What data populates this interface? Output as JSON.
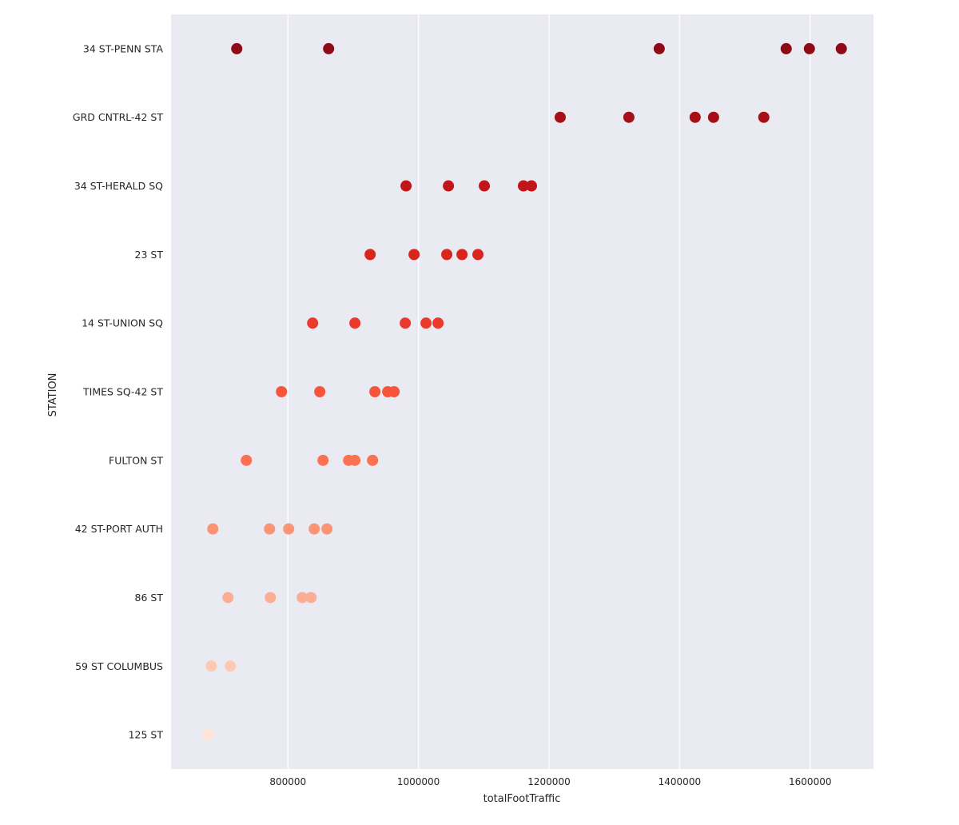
{
  "chart_data": {
    "type": "scatter",
    "subtype": "strip",
    "title": "",
    "xlabel": "totalFootTraffic",
    "ylabel": "STATION",
    "xlim": [
      621000,
      1697000
    ],
    "xticks": [
      800000,
      1000000,
      1200000,
      1400000,
      1600000
    ],
    "xtick_labels": [
      "800000",
      "1000000",
      "1200000",
      "1400000",
      "1600000"
    ],
    "grid": "vertical",
    "background": "#eaeaf2",
    "categories": [
      "34 ST-PENN STA",
      "GRD CNTRL-42 ST",
      "34 ST-HERALD SQ",
      "23 ST",
      "14 ST-UNION SQ",
      "TIMES SQ-42 ST",
      "FULTON ST",
      "42 ST-PORT AUTH",
      "86 ST",
      "59 ST COLUMBUS",
      "125 ST"
    ],
    "colors": [
      "#8e0b16",
      "#a50f15",
      "#c0151b",
      "#d8261f",
      "#ea3a2c",
      "#f6553c",
      "#fb7252",
      "#fc9373",
      "#fcae92",
      "#fdc9b3",
      "#fee3d6"
    ],
    "series": [
      {
        "name": "34 ST-PENN STA",
        "values": [
          721700,
          862400,
          1368800,
          1563300,
          1598800,
          1647700
        ]
      },
      {
        "name": "GRD CNTRL-42 ST",
        "values": [
          1217100,
          1322300,
          1423800,
          1452000,
          1529000
        ]
      },
      {
        "name": "34 ST-HERALD SQ",
        "values": [
          981000,
          1045900,
          1100900,
          1160800,
          1173100
        ]
      },
      {
        "name": "23 ST",
        "values": [
          926000,
          993300,
          1043400,
          1066700,
          1091100
        ]
      },
      {
        "name": "14 ST-UNION SQ",
        "values": [
          837900,
          902700,
          979800,
          1011600,
          1030000
        ]
      },
      {
        "name": "TIMES SQ-42 ST",
        "values": [
          790200,
          848900,
          933300,
          952900,
          962700
        ]
      },
      {
        "name": "FULTON ST",
        "values": [
          736400,
          853800,
          893000,
          902700,
          929700
        ]
      },
      {
        "name": "42 ST-PORT AUTH",
        "values": [
          685000,
          771900,
          801200,
          840400,
          859900
        ]
      },
      {
        "name": "86 ST",
        "values": [
          708300,
          773100,
          822000,
          835500
        ]
      },
      {
        "name": "59 ST COLUMBUS",
        "values": [
          682600,
          711900
        ]
      },
      {
        "name": "125 ST",
        "values": [
          677700
        ]
      }
    ]
  }
}
